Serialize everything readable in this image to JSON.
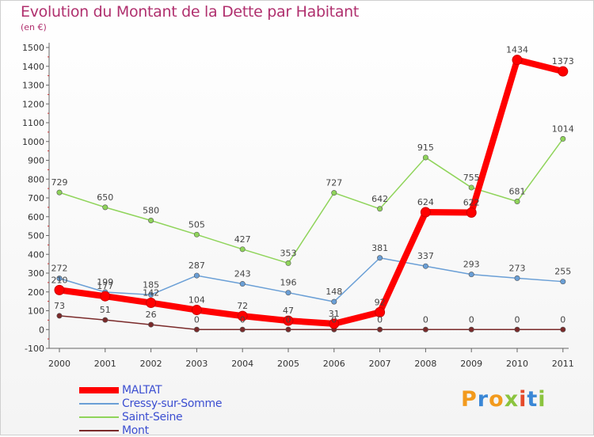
{
  "title": "Evolution du Montant de la Dette par Habitant",
  "unit_label": "(en €)",
  "logo": {
    "letters": [
      "P",
      "r",
      "o",
      "x",
      "i",
      "t",
      "i"
    ],
    "colors": [
      "#f29a1d",
      "#3a87d6",
      "#f29a1d",
      "#8bc43f",
      "#e54a2a",
      "#3a87d6",
      "#8bc43f"
    ]
  },
  "chart_data": {
    "type": "line",
    "x": [
      "2000",
      "2001",
      "2002",
      "2003",
      "2004",
      "2005",
      "2006",
      "2007",
      "2008",
      "2009",
      "2010",
      "2011"
    ],
    "ylim": [
      -100,
      1500
    ],
    "yticks": [
      -100,
      0,
      100,
      200,
      300,
      400,
      500,
      600,
      700,
      800,
      900,
      1000,
      1100,
      1200,
      1300,
      1400,
      1500
    ],
    "grid": false,
    "legend": "bottom-left",
    "series": [
      {
        "name": "Mont",
        "color": "#7a2a2a",
        "values": [
          73,
          51,
          26,
          0,
          0,
          0,
          0,
          0,
          0,
          0,
          0,
          0
        ]
      },
      {
        "name": "Saint-Seine",
        "color": "#8fd45a",
        "values": [
          729,
          650,
          580,
          505,
          427,
          353,
          727,
          642,
          915,
          755,
          681,
          1014
        ]
      },
      {
        "name": "Cressy-sur-Somme",
        "color": "#6a9fd6",
        "values": [
          272,
          199,
          185,
          287,
          243,
          196,
          148,
          381,
          337,
          293,
          273,
          255
        ]
      },
      {
        "name": "MALTAT",
        "color": "#ff0000",
        "values": [
          210,
          177,
          142,
          104,
          72,
          47,
          31,
          92,
          624,
          622,
          1434,
          1373
        ]
      }
    ]
  },
  "legend_items": [
    {
      "name": "MALTAT",
      "color": "#ff0000",
      "thick": true
    },
    {
      "name": "Cressy-sur-Somme",
      "color": "#6a9fd6",
      "thick": false
    },
    {
      "name": "Saint-Seine",
      "color": "#8fd45a",
      "thick": false
    },
    {
      "name": "Mont",
      "color": "#7a2a2a",
      "thick": false
    }
  ]
}
